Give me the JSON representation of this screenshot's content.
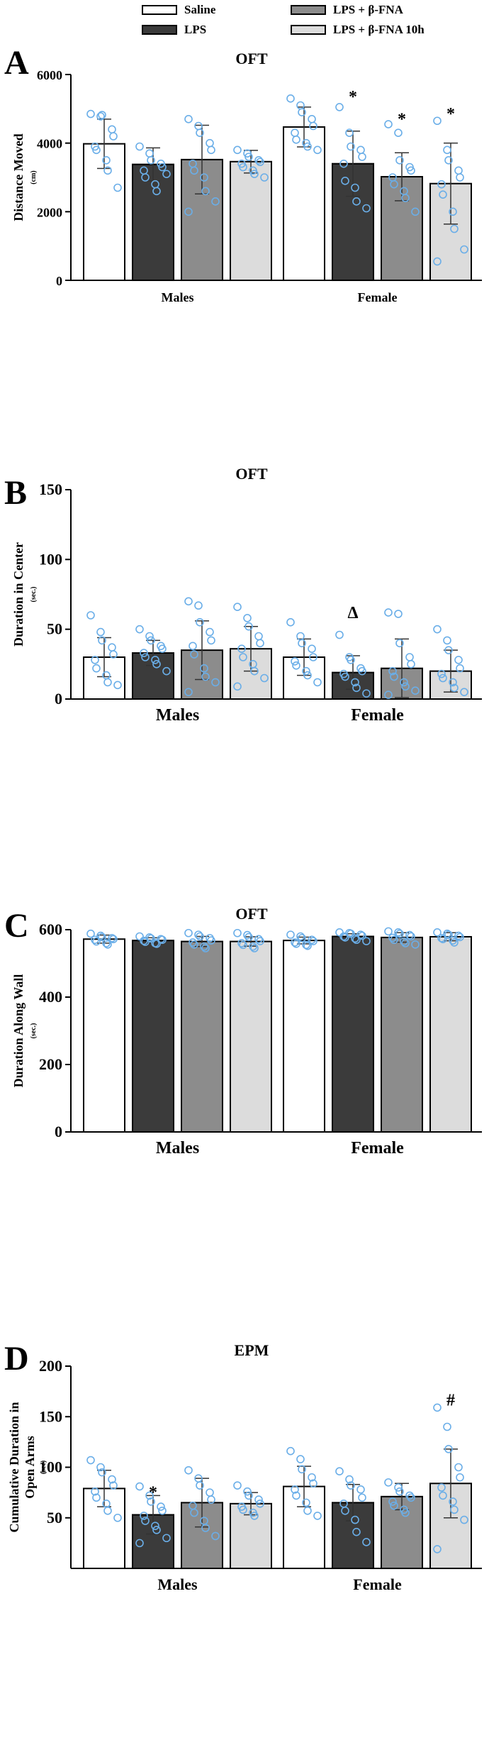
{
  "legend": {
    "items": [
      {
        "label": "Saline",
        "color": "#ffffff"
      },
      {
        "label": "LPS",
        "color": "#3b3b3b"
      },
      {
        "label": "LPS + β-FNA",
        "color": "#8c8c8c"
      },
      {
        "label": "LPS + β-FNA 10h",
        "color": "#dcdcdc"
      }
    ]
  },
  "colors": {
    "point": "#6aaee8",
    "axis": "#000000",
    "error": "#333333"
  },
  "chart_data": [
    {
      "type": "bar",
      "panel_label": "A",
      "title": "OFT",
      "ylabel": "Distance Moved",
      "yunit": "(cm)",
      "ylim": [
        0,
        6000
      ],
      "yticks": [
        0,
        2000,
        4000,
        6000
      ],
      "ytick_labels": [
        "0",
        "2000",
        "4000",
        "6000"
      ],
      "categories": [
        "Males",
        "Female"
      ],
      "series": [
        {
          "name": "Saline",
          "values": [
            3980,
            4470
          ],
          "err": [
            720,
            580
          ]
        },
        {
          "name": "LPS",
          "values": [
            3380,
            3400
          ],
          "err": [
            480,
            950
          ]
        },
        {
          "name": "LPS + β-FNA",
          "values": [
            3520,
            3020
          ],
          "err": [
            1000,
            700
          ]
        },
        {
          "name": "LPS + β-FNA 10h",
          "values": [
            3460,
            2820
          ],
          "err": [
            330,
            1180
          ]
        }
      ],
      "points": [
        [
          [
            4850,
            4780,
            4820,
            4400,
            4200,
            3900,
            3800,
            3500,
            3200,
            2700
          ],
          [
            5300,
            5100,
            4900,
            4700,
            4500,
            4300,
            4100,
            4000,
            3900,
            3800
          ]
        ],
        [
          [
            3900,
            3700,
            3500,
            3400,
            3300,
            3200,
            3000,
            2800,
            2600,
            3100
          ],
          [
            5050,
            4300,
            3900,
            3800,
            3600,
            3400,
            2900,
            2700,
            2300,
            2100
          ]
        ],
        [
          [
            4700,
            4500,
            4300,
            4000,
            3800,
            3400,
            3200,
            3000,
            2600,
            2300,
            2000
          ],
          [
            4550,
            4300,
            3500,
            3300,
            3200,
            3000,
            2800,
            2600,
            2400,
            2000
          ]
        ],
        [
          [
            3800,
            3700,
            3600,
            3500,
            3450,
            3400,
            3300,
            3200,
            3100,
            3000
          ],
          [
            4650,
            3800,
            3500,
            3200,
            3000,
            2800,
            2500,
            2000,
            1500,
            900,
            550
          ]
        ]
      ],
      "annotations": [
        {
          "text": "*",
          "group": 1,
          "series": 1,
          "value": 5400
        },
        {
          "text": "*",
          "group": 1,
          "series": 2,
          "value": 4750
        },
        {
          "text": "*",
          "group": 1,
          "series": 3,
          "value": 4900
        }
      ]
    },
    {
      "type": "bar",
      "panel_label": "B",
      "title": "OFT",
      "ylabel": "Duration in Center",
      "yunit": "(sec.)",
      "ylim": [
        0,
        150
      ],
      "yticks": [
        0,
        50,
        100,
        150
      ],
      "ytick_labels": [
        "0",
        "50",
        "100",
        "150"
      ],
      "categories": [
        "Males",
        "Female"
      ],
      "series": [
        {
          "name": "Saline",
          "values": [
            30,
            30
          ],
          "err": [
            14,
            13
          ]
        },
        {
          "name": "LPS",
          "values": [
            33,
            19
          ],
          "err": [
            9,
            12
          ]
        },
        {
          "name": "LPS + β-FNA",
          "values": [
            35,
            22
          ],
          "err": [
            21,
            21
          ]
        },
        {
          "name": "LPS + β-FNA 10h",
          "values": [
            36,
            20
          ],
          "err": [
            16,
            15
          ]
        }
      ],
      "points": [
        [
          [
            60,
            48,
            42,
            37,
            32,
            28,
            22,
            17,
            12,
            10
          ],
          [
            55,
            45,
            40,
            36,
            30,
            27,
            24,
            20,
            17,
            12
          ]
        ],
        [
          [
            50,
            45,
            42,
            38,
            36,
            33,
            30,
            28,
            25,
            20
          ],
          [
            46,
            30,
            28,
            22,
            20,
            18,
            16,
            12,
            8,
            4
          ]
        ],
        [
          [
            70,
            67,
            55,
            48,
            42,
            38,
            32,
            22,
            16,
            12,
            5
          ],
          [
            62,
            61,
            40,
            30,
            25,
            20,
            16,
            12,
            9,
            6,
            3
          ]
        ],
        [
          [
            66,
            58,
            52,
            45,
            40,
            36,
            30,
            25,
            20,
            15,
            9
          ],
          [
            50,
            42,
            35,
            28,
            22,
            18,
            15,
            12,
            8,
            5
          ]
        ]
      ],
      "annotations": [
        {
          "text": "Δ",
          "group": 1,
          "series": 1,
          "value": 63
        }
      ]
    },
    {
      "type": "bar",
      "panel_label": "C",
      "title": "OFT",
      "ylabel": "Duration Along Wall",
      "yunit": "(sec.)",
      "ylim": [
        0,
        600
      ],
      "yticks": [
        0,
        200,
        400,
        600
      ],
      "ytick_labels": [
        "0",
        "200",
        "400",
        "600"
      ],
      "categories": [
        "Males",
        "Female"
      ],
      "series": [
        {
          "name": "Saline",
          "values": [
            572,
            568
          ],
          "err": [
            12,
            10
          ]
        },
        {
          "name": "LPS",
          "values": [
            568,
            580
          ],
          "err": [
            8,
            8
          ]
        },
        {
          "name": "LPS + β-FNA",
          "values": [
            565,
            577
          ],
          "err": [
            15,
            14
          ]
        },
        {
          "name": "LPS + β-FNA 10h",
          "values": [
            565,
            579
          ],
          "err": [
            14,
            12
          ]
        }
      ],
      "points": [
        [
          [
            588,
            582,
            578,
            575,
            572,
            570,
            565,
            560,
            556
          ],
          [
            585,
            580,
            575,
            570,
            566,
            562,
            558,
            555,
            552
          ]
        ],
        [
          [
            580,
            577,
            574,
            572,
            570,
            567,
            564,
            560,
            558
          ],
          [
            592,
            590,
            588,
            585,
            582,
            580,
            577,
            574,
            570,
            566
          ]
        ],
        [
          [
            590,
            585,
            580,
            575,
            568,
            562,
            556,
            550,
            545
          ],
          [
            595,
            592,
            588,
            584,
            580,
            576,
            570,
            565,
            560,
            556
          ]
        ],
        [
          [
            590,
            584,
            578,
            572,
            566,
            560,
            555,
            550,
            545
          ],
          [
            592,
            588,
            585,
            582,
            578,
            575,
            572,
            568,
            562
          ]
        ]
      ],
      "annotations": []
    },
    {
      "type": "bar",
      "panel_label": "D",
      "title": "EPM",
      "ylabel": "Cumulative Duration in",
      "ylabel2": "Open Arms",
      "yunit": "(sec)",
      "ylim": [
        0,
        200
      ],
      "yticks": [
        50,
        100,
        150,
        200
      ],
      "ytick_labels": [
        "50",
        "100",
        "150",
        "200"
      ],
      "categories": [
        "Males",
        "Female"
      ],
      "series": [
        {
          "name": "Saline",
          "values": [
            79,
            81
          ],
          "err": [
            18,
            20
          ]
        },
        {
          "name": "LPS",
          "values": [
            53,
            65
          ],
          "err": [
            19,
            18
          ]
        },
        {
          "name": "LPS + β-FNA",
          "values": [
            65,
            71
          ],
          "err": [
            24,
            13
          ]
        },
        {
          "name": "LPS + β-FNA 10h",
          "values": [
            64,
            84
          ],
          "err": [
            11,
            34
          ]
        }
      ],
      "points": [
        [
          [
            107,
            100,
            95,
            88,
            82,
            76,
            70,
            64,
            57,
            50
          ],
          [
            116,
            108,
            98,
            90,
            84,
            78,
            72,
            65,
            57,
            52
          ]
        ],
        [
          [
            81,
            72,
            66,
            61,
            57,
            52,
            47,
            42,
            38,
            30,
            25
          ],
          [
            96,
            88,
            82,
            78,
            70,
            64,
            57,
            48,
            36,
            26
          ]
        ],
        [
          [
            97,
            89,
            82,
            75,
            68,
            62,
            55,
            47,
            40,
            32
          ],
          [
            85,
            80,
            76,
            72,
            70,
            66,
            62,
            58,
            55
          ]
        ],
        [
          [
            82,
            76,
            72,
            68,
            64,
            61,
            58,
            55,
            52
          ],
          [
            159,
            140,
            118,
            100,
            90,
            80,
            72,
            66,
            58,
            48,
            19
          ]
        ]
      ],
      "annotations": [
        {
          "text": "*",
          "group": 0,
          "series": 1,
          "value": 77
        },
        {
          "text": "#",
          "group": 1,
          "series": 3,
          "value": 168
        }
      ]
    }
  ]
}
